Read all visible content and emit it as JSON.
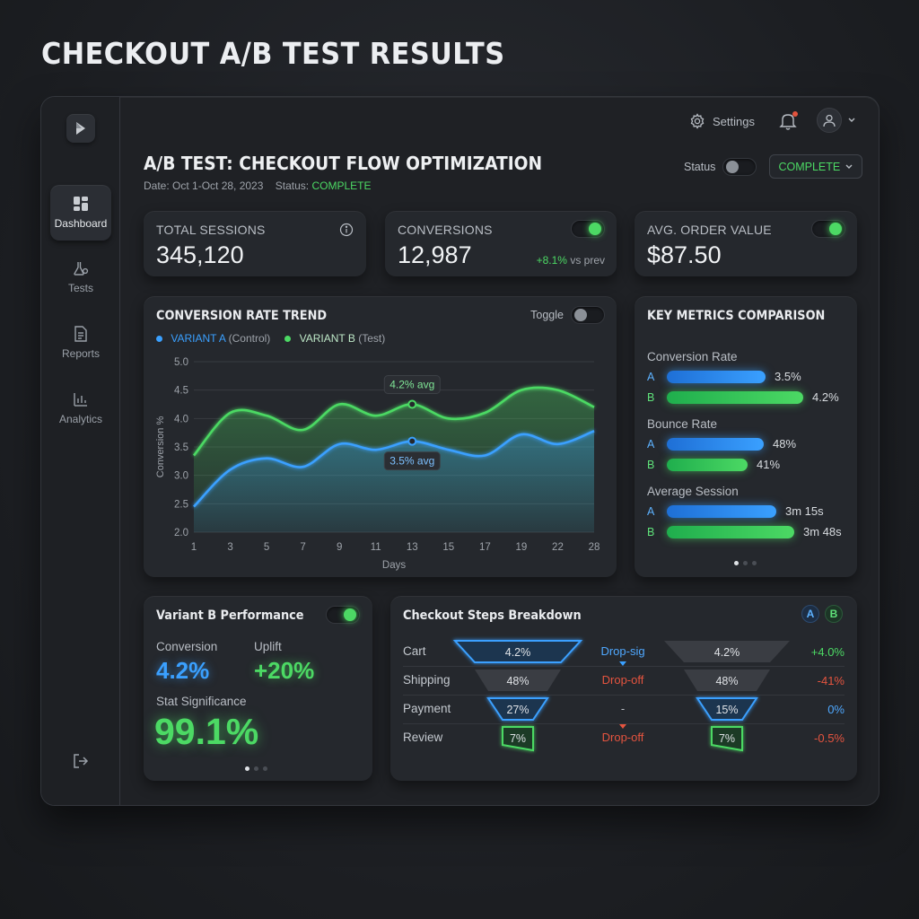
{
  "page_title": "CHECKOUT A/B TEST RESULTS",
  "sidebar": {
    "items": [
      {
        "label": "Dashboard",
        "icon": "dashboard-grid-icon",
        "active": true
      },
      {
        "label": "Tests",
        "icon": "flask-icon",
        "active": false
      },
      {
        "label": "Reports",
        "icon": "document-icon",
        "active": false
      },
      {
        "label": "Analytics",
        "icon": "bar-chart-icon",
        "active": false
      }
    ],
    "logout_icon": "logout-icon"
  },
  "topbar": {
    "settings_label": "Settings"
  },
  "header": {
    "title": "A/B TEST: CHECKOUT FLOW OPTIMIZATION",
    "date_text": "Date: Oct 1-Oct 28, 2023",
    "status_prefix": "Status:",
    "status_value": "COMPLETE",
    "status_toggle_label": "Status",
    "status_select_value": "COMPLETE"
  },
  "kpis": {
    "sessions": {
      "label": "TOTAL SESSIONS",
      "value": "345,120"
    },
    "conversions": {
      "label": "CONVERSIONS",
      "value": "12,987",
      "delta": "+8.1%",
      "delta_suffix": "vs prev"
    },
    "aov": {
      "label": "AVG. ORDER VALUE",
      "value": "$87.50"
    }
  },
  "trend": {
    "title": "CONVERSION RATE TREND",
    "toggle_label": "Toggle",
    "annotation_b": "4.2% avg",
    "annotation_a": "3.5% avg",
    "colors": {
      "a": "#3aa0ff",
      "b": "#4cd964"
    }
  },
  "chart_data": {
    "type": "area",
    "title": "CONVERSION RATE TREND",
    "xlabel": "Days",
    "ylabel": "Conversion %",
    "x": [
      1,
      3,
      5,
      7,
      9,
      11,
      13,
      15,
      17,
      19,
      22,
      28
    ],
    "x_ticks": [
      "1",
      "3",
      "5",
      "7",
      "9",
      "11",
      "13",
      "15",
      "17",
      "19",
      "22",
      "28"
    ],
    "y_ticks": [
      "5.0",
      "4.5",
      "4.0",
      "3.5",
      "3.0",
      "2.5",
      "2.0"
    ],
    "ylim": [
      2.0,
      5.0
    ],
    "series": [
      {
        "name": "VARIANT A",
        "name_suffix": "(Control)",
        "values": [
          2.45,
          3.1,
          3.3,
          3.15,
          3.55,
          3.45,
          3.6,
          3.45,
          3.35,
          3.72,
          3.55,
          3.78
        ]
      },
      {
        "name": "VARIANT B",
        "name_suffix": "(Test)",
        "values": [
          3.35,
          4.1,
          4.05,
          3.8,
          4.25,
          4.05,
          4.25,
          4.0,
          4.1,
          4.5,
          4.5,
          4.2
        ]
      }
    ],
    "annotations": [
      {
        "text": "4.2% avg",
        "series": "VARIANT B",
        "x": 13
      },
      {
        "text": "3.5% avg",
        "series": "VARIANT A",
        "x": 13
      }
    ],
    "grid": true,
    "legend": "top-left"
  },
  "key_metrics": {
    "title": "KEY METRICS COMPARISON",
    "groups": [
      {
        "label": "Conversion Rate",
        "a": {
          "letter": "A",
          "value": "3.5%",
          "fraction": 0.55
        },
        "b": {
          "letter": "B",
          "value": "4.2%",
          "fraction": 0.76
        }
      },
      {
        "label": "Bounce Rate",
        "a": {
          "letter": "A",
          "value": "48%",
          "fraction": 0.54
        },
        "b": {
          "letter": "B",
          "value": "41%",
          "fraction": 0.45
        }
      },
      {
        "label": "Average Session",
        "a": {
          "letter": "A",
          "value": "3m 15s",
          "fraction": 0.61
        },
        "b": {
          "letter": "B",
          "value": "3m 48s",
          "fraction": 0.71
        }
      }
    ]
  },
  "variant_b": {
    "title": "Variant B Performance",
    "conversion_label": "Conversion",
    "conversion_value": "4.2%",
    "uplift_label": "Uplift",
    "uplift_value": "+20%",
    "significance_label": "Stat Significance",
    "significance_value": "99.1%"
  },
  "checkout_steps": {
    "title": "Checkout Steps Breakdown",
    "badge_a": "A",
    "badge_b": "B",
    "steps": [
      {
        "label": "Cart",
        "a": "4.2%",
        "b": "4.2%",
        "mid": "Drop-sig",
        "change": "+4.0%"
      },
      {
        "label": "Shipping",
        "a": "48%",
        "b": "48%",
        "mid": "Drop-off",
        "change": "-41%"
      },
      {
        "label": "Payment",
        "a": "27%",
        "b": "15%",
        "mid": "-",
        "change": "0%"
      },
      {
        "label": "Review",
        "a": "7%",
        "b": "7%",
        "mid": "Drop-off",
        "change": "-0.5%"
      }
    ]
  }
}
